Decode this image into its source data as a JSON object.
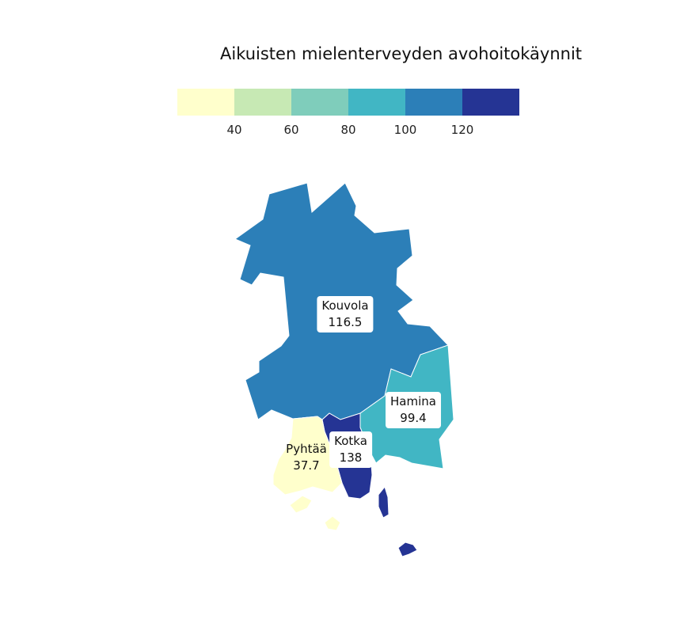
{
  "title": "Aikuisten mielenterveyden avohoitokäynnit",
  "legend": {
    "colors": [
      "#ffffcc",
      "#c7e9b4",
      "#7fcdbb",
      "#41b6c4",
      "#2c7fb8",
      "#253494"
    ],
    "ticks": [
      "40",
      "60",
      "80",
      "100",
      "120"
    ]
  },
  "regions": [
    {
      "name": "Kouvola",
      "value": "116.5",
      "color": "#2c7fb8"
    },
    {
      "name": "Hamina",
      "value": "99.4",
      "color": "#41b6c4"
    },
    {
      "name": "Kotka",
      "value": "138",
      "color": "#253494"
    },
    {
      "name": "Pyhtää",
      "value": "37.7",
      "color": "#ffffcc"
    }
  ]
}
